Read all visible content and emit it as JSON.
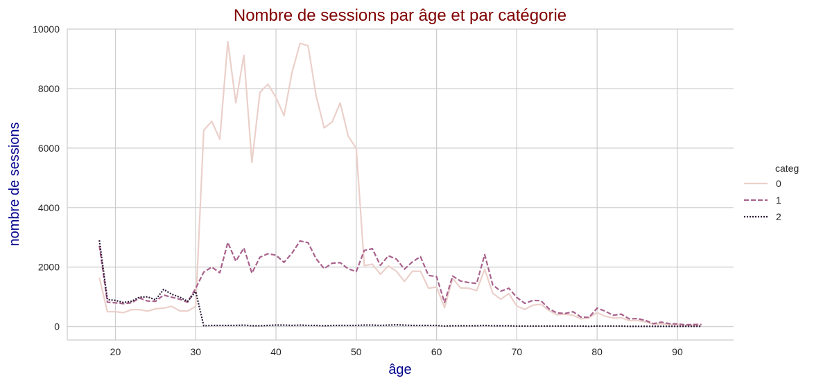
{
  "chart_data": {
    "type": "line",
    "title": "Nombre de sessions par âge et par catégorie",
    "xlabel": "âge",
    "ylabel": "nombre de sessions",
    "xlim": [
      14,
      97
    ],
    "ylim": [
      -450,
      10000
    ],
    "xticks": [
      20,
      30,
      40,
      50,
      60,
      70,
      80,
      90
    ],
    "yticks": [
      0,
      2000,
      4000,
      6000,
      8000,
      10000
    ],
    "grid": true,
    "legend": {
      "title": "categ",
      "placement": "right"
    },
    "x": [
      18,
      19,
      20,
      21,
      22,
      23,
      24,
      25,
      26,
      27,
      28,
      29,
      30,
      31,
      32,
      33,
      34,
      35,
      36,
      37,
      38,
      39,
      40,
      41,
      42,
      43,
      44,
      45,
      46,
      47,
      48,
      49,
      50,
      51,
      52,
      53,
      54,
      55,
      56,
      57,
      58,
      59,
      60,
      61,
      62,
      63,
      64,
      65,
      66,
      67,
      68,
      69,
      70,
      71,
      72,
      73,
      74,
      75,
      76,
      77,
      78,
      79,
      80,
      81,
      82,
      83,
      84,
      85,
      86,
      87,
      88,
      89,
      90,
      91,
      92,
      93
    ],
    "series": [
      {
        "name": "0",
        "color": "#ebd0ca",
        "dash": "solid",
        "values": [
          1650,
          500,
          500,
          470,
          570,
          570,
          520,
          600,
          620,
          680,
          530,
          520,
          680,
          6600,
          6900,
          6300,
          9580,
          7520,
          9120,
          5520,
          7870,
          8150,
          7700,
          7090,
          8550,
          9520,
          9440,
          7760,
          6680,
          6880,
          7520,
          6400,
          5990,
          2050,
          2100,
          1760,
          2040,
          1860,
          1520,
          1860,
          1860,
          1290,
          1330,
          640,
          1620,
          1300,
          1290,
          1210,
          1930,
          1120,
          920,
          1110,
          690,
          580,
          720,
          750,
          540,
          400,
          420,
          380,
          260,
          300,
          470,
          350,
          290,
          300,
          200,
          210,
          160,
          80,
          100,
          70,
          60,
          40,
          50,
          40
        ]
      },
      {
        "name": "1",
        "color": "#a8628c",
        "dash": "dashed",
        "values": [
          2720,
          820,
          800,
          770,
          800,
          960,
          860,
          850,
          1060,
          990,
          920,
          820,
          1290,
          1830,
          2000,
          1810,
          2830,
          2200,
          2640,
          1800,
          2330,
          2450,
          2400,
          2160,
          2470,
          2880,
          2820,
          2280,
          1950,
          2130,
          2150,
          1940,
          1850,
          2560,
          2620,
          2060,
          2380,
          2270,
          1930,
          2180,
          2350,
          1720,
          1680,
          810,
          1700,
          1530,
          1480,
          1450,
          2420,
          1400,
          1190,
          1290,
          980,
          780,
          880,
          870,
          600,
          460,
          440,
          500,
          320,
          310,
          620,
          520,
          380,
          420,
          260,
          270,
          210,
          100,
          150,
          100,
          90,
          60,
          70,
          70
        ]
      },
      {
        "name": "2",
        "color": "#2b1a36",
        "dash": "dotted",
        "values": [
          2900,
          910,
          880,
          810,
          850,
          990,
          1000,
          900,
          1250,
          1090,
          990,
          850,
          1180,
          30,
          40,
          40,
          40,
          40,
          50,
          30,
          30,
          40,
          50,
          50,
          40,
          50,
          40,
          40,
          30,
          40,
          40,
          40,
          40,
          50,
          50,
          40,
          50,
          60,
          50,
          40,
          40,
          40,
          40,
          20,
          30,
          30,
          30,
          30,
          40,
          30,
          30,
          30,
          20,
          20,
          20,
          20,
          20,
          20,
          20,
          20,
          20,
          10,
          20,
          20,
          20,
          20,
          10,
          10,
          10,
          10,
          10,
          10,
          10,
          10,
          10,
          10
        ]
      }
    ]
  }
}
